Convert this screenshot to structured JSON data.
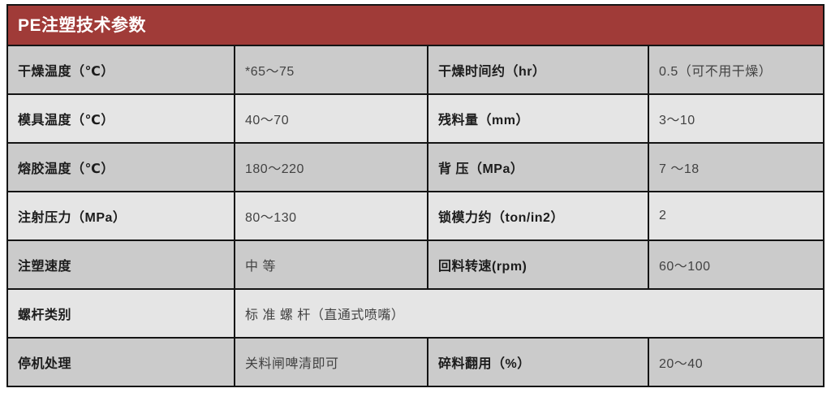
{
  "colors": {
    "header_bg": "#A03B38",
    "header_text": "#FFFFFF",
    "row_dark": "#CBCBCB",
    "row_light": "#E5E5E5",
    "border": "#141414",
    "label_text": "#1C1C1C",
    "value_text": "#424242"
  },
  "table": {
    "title": "PE注塑技术参数",
    "rows": [
      {
        "cells": [
          {
            "text": "干燥温度（℃）"
          },
          {
            "text": "*65～75"
          },
          {
            "text": "干燥时间约（hr）"
          },
          {
            "text": "0.5（可不用干燥）"
          }
        ]
      },
      {
        "cells": [
          {
            "text": "模具温度（℃）"
          },
          {
            "text": "40～70"
          },
          {
            "text": "残料量（mm）"
          },
          {
            "text": "3～10"
          }
        ]
      },
      {
        "cells": [
          {
            "text": "熔胶温度（℃）"
          },
          {
            "text": "180～220"
          },
          {
            "text": "背 压（MPa）"
          },
          {
            "text": "7 ～18"
          }
        ]
      },
      {
        "cells": [
          {
            "text": "注射压力（MPa）"
          },
          {
            "text": "80～130"
          },
          {
            "text": "锁模力约（ton/in2）"
          },
          {
            "text": "2"
          }
        ]
      },
      {
        "cells": [
          {
            "text": "注塑速度"
          },
          {
            "text": "中 等"
          },
          {
            "text": "回料转速(rpm)"
          },
          {
            "text": "60～100"
          }
        ]
      },
      {
        "cells": [
          {
            "text": "螺杆类别"
          },
          {
            "text": "标 准 螺 杆（直通式喷嘴）"
          }
        ]
      },
      {
        "cells": [
          {
            "text": "停机处理"
          },
          {
            "text": "关料闸啤清即可"
          },
          {
            "text": "碎料翻用（%）"
          },
          {
            "text": "20～40"
          }
        ]
      }
    ]
  }
}
